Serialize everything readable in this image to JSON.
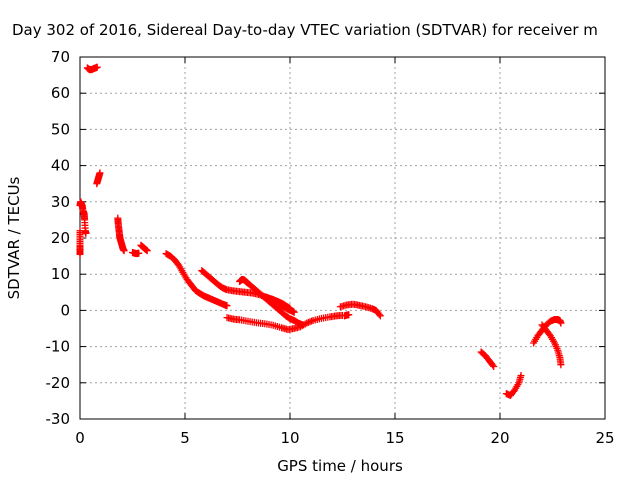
{
  "chart_data": {
    "type": "scatter",
    "title": "Day 302 of 2016, Sidereal Day-to-day VTEC variation (SDTVAR) for receiver m",
    "xlabel": "GPS time / hours",
    "ylabel": "SDTVAR / TECUs",
    "xlim": [
      0,
      25
    ],
    "ylim": [
      -30,
      70
    ],
    "xticks": [
      0,
      5,
      10,
      15,
      20,
      25
    ],
    "yticks": [
      -30,
      -20,
      -10,
      0,
      10,
      20,
      30,
      40,
      50,
      60,
      70
    ],
    "grid": true,
    "marker": "plus",
    "color": "#ff0000",
    "series": [
      {
        "name": "s1",
        "values": [
          [
            0.0,
            29
          ],
          [
            0.03,
            30
          ],
          [
            0.06,
            29.5
          ],
          [
            0.1,
            29
          ],
          [
            0.13,
            28
          ]
        ]
      },
      {
        "name": "s2",
        "values": [
          [
            0.0,
            22
          ],
          [
            0.0,
            20
          ],
          [
            0.0,
            18
          ],
          [
            0.0,
            16.5
          ],
          [
            0.0,
            15.5
          ]
        ]
      },
      {
        "name": "s3",
        "values": [
          [
            0.15,
            27.5
          ],
          [
            0.18,
            27
          ],
          [
            0.2,
            26.5
          ],
          [
            0.22,
            25
          ],
          [
            0.25,
            22
          ],
          [
            0.27,
            21.5
          ],
          [
            0.28,
            21.3
          ]
        ]
      },
      {
        "name": "s4",
        "values": [
          [
            0.35,
            67
          ],
          [
            0.45,
            66.5
          ],
          [
            0.55,
            66.5
          ],
          [
            0.65,
            66.8
          ],
          [
            0.75,
            67
          ],
          [
            0.82,
            67.2
          ]
        ]
      },
      {
        "name": "s5",
        "values": [
          [
            0.8,
            35
          ],
          [
            0.85,
            36
          ],
          [
            0.9,
            37
          ],
          [
            0.95,
            38
          ]
        ]
      },
      {
        "name": "s6",
        "values": [
          [
            1.8,
            25.5
          ],
          [
            1.82,
            24
          ],
          [
            1.85,
            22.5
          ],
          [
            1.88,
            21
          ],
          [
            1.9,
            20
          ],
          [
            1.95,
            19
          ],
          [
            2.0,
            18
          ],
          [
            2.05,
            17
          ],
          [
            2.1,
            16.5
          ]
        ]
      },
      {
        "name": "s7",
        "values": [
          [
            2.5,
            16
          ],
          [
            2.6,
            15.8
          ],
          [
            2.7,
            15.7
          ],
          [
            2.8,
            15.8
          ]
        ]
      },
      {
        "name": "s8",
        "values": [
          [
            2.9,
            18
          ],
          [
            3.0,
            17.5
          ],
          [
            3.1,
            17
          ],
          [
            3.2,
            16.5
          ]
        ]
      },
      {
        "name": "s9",
        "values": [
          [
            4.1,
            15.7
          ],
          [
            4.3,
            15
          ],
          [
            4.5,
            14
          ],
          [
            4.7,
            12.5
          ],
          [
            4.9,
            10.5
          ],
          [
            5.1,
            8.5
          ],
          [
            5.3,
            7
          ],
          [
            5.5,
            5.5
          ],
          [
            5.7,
            4.7
          ],
          [
            5.9,
            4
          ],
          [
            6.1,
            3.5
          ],
          [
            6.3,
            3
          ],
          [
            6.5,
            2.5
          ],
          [
            6.7,
            2
          ],
          [
            6.9,
            1.5
          ],
          [
            7.0,
            1.3
          ]
        ]
      },
      {
        "name": "s10",
        "values": [
          [
            5.8,
            11
          ],
          [
            6.0,
            10
          ],
          [
            6.2,
            9
          ],
          [
            6.4,
            8
          ],
          [
            6.6,
            7
          ],
          [
            6.8,
            6.2
          ],
          [
            7.0,
            5.7
          ],
          [
            7.3,
            5.4
          ],
          [
            7.6,
            5.2
          ],
          [
            7.9,
            5
          ],
          [
            8.2,
            4.8
          ],
          [
            8.5,
            4.4
          ],
          [
            8.8,
            3.8
          ],
          [
            9.0,
            3.4
          ],
          [
            9.2,
            3
          ],
          [
            9.4,
            2.5
          ],
          [
            9.6,
            2
          ],
          [
            9.8,
            1.3
          ],
          [
            10.0,
            0.6
          ]
        ]
      },
      {
        "name": "s11",
        "values": [
          [
            7.6,
            8
          ],
          [
            7.7,
            8.5
          ],
          [
            7.8,
            8.5
          ],
          [
            7.9,
            8
          ],
          [
            8.0,
            7.5
          ],
          [
            8.2,
            6.5
          ],
          [
            8.4,
            5.5
          ],
          [
            8.6,
            4.5
          ],
          [
            8.8,
            3.5
          ],
          [
            9.0,
            2.5
          ],
          [
            9.2,
            1.5
          ],
          [
            9.4,
            0.5
          ],
          [
            9.6,
            -0.5
          ],
          [
            9.8,
            -1.5
          ],
          [
            10.0,
            -2.3
          ],
          [
            10.2,
            -2.8
          ],
          [
            10.4,
            -3.5
          ],
          [
            10.6,
            -4
          ]
        ]
      },
      {
        "name": "s12",
        "values": [
          [
            9.5,
            1.8
          ],
          [
            9.7,
            1
          ],
          [
            9.9,
            0.3
          ],
          [
            10.1,
            -0.2
          ],
          [
            10.2,
            -0.5
          ]
        ]
      },
      {
        "name": "s13",
        "values": [
          [
            7.0,
            -2
          ],
          [
            7.3,
            -2.4
          ],
          [
            7.6,
            -2.6
          ],
          [
            8.0,
            -3
          ],
          [
            8.4,
            -3.4
          ],
          [
            8.8,
            -3.7
          ],
          [
            9.2,
            -4.1
          ],
          [
            9.6,
            -4.8
          ],
          [
            9.9,
            -5.3
          ],
          [
            10.2,
            -5
          ],
          [
            10.5,
            -4.5
          ],
          [
            10.8,
            -3.5
          ],
          [
            11.1,
            -2.8
          ],
          [
            11.5,
            -2.2
          ],
          [
            11.9,
            -1.8
          ],
          [
            12.2,
            -1.5
          ],
          [
            12.5,
            -1.4
          ]
        ]
      },
      {
        "name": "s14",
        "values": [
          [
            12.4,
            1
          ],
          [
            12.7,
            1.5
          ],
          [
            13.0,
            1.7
          ],
          [
            13.3,
            1.4
          ],
          [
            13.6,
            1
          ],
          [
            13.9,
            0.5
          ],
          [
            14.1,
            0
          ],
          [
            14.3,
            -1.5
          ]
        ]
      },
      {
        "name": "s15",
        "values": [
          [
            12.6,
            -1.5
          ],
          [
            12.7,
            -1.3
          ],
          [
            12.8,
            -1.2
          ]
        ]
      },
      {
        "name": "s16",
        "values": [
          [
            19.1,
            -11.5
          ],
          [
            19.3,
            -12.5
          ],
          [
            19.5,
            -14
          ],
          [
            19.7,
            -15.5
          ]
        ]
      },
      {
        "name": "s17",
        "values": [
          [
            20.3,
            -23
          ],
          [
            20.5,
            -23.5
          ],
          [
            20.7,
            -22
          ],
          [
            20.9,
            -20
          ],
          [
            21.0,
            -18
          ]
        ]
      },
      {
        "name": "s18",
        "values": [
          [
            21.6,
            -9
          ],
          [
            21.8,
            -7
          ],
          [
            22.0,
            -5.5
          ],
          [
            22.2,
            -4
          ],
          [
            22.4,
            -3
          ],
          [
            22.6,
            -2.5
          ],
          [
            22.75,
            -2.5
          ],
          [
            22.85,
            -2.8
          ],
          [
            22.9,
            -3.5
          ]
        ]
      },
      {
        "name": "s19",
        "values": [
          [
            22.0,
            -4
          ],
          [
            22.2,
            -5.5
          ],
          [
            22.4,
            -7
          ],
          [
            22.6,
            -9
          ],
          [
            22.75,
            -11
          ],
          [
            22.85,
            -13
          ],
          [
            22.9,
            -15
          ]
        ]
      }
    ]
  }
}
